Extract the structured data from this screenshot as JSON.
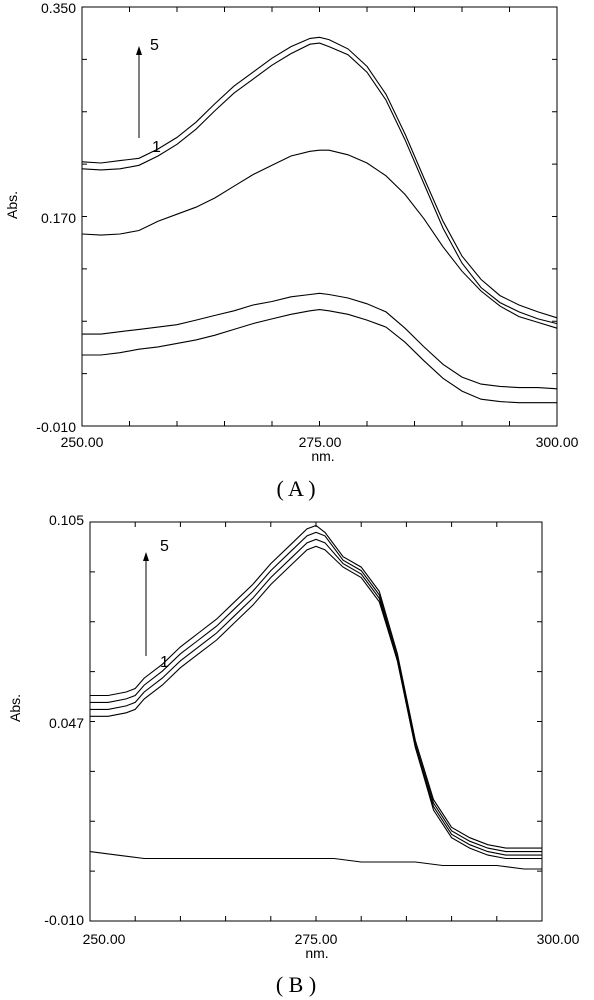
{
  "chart_data": [
    {
      "type": "line",
      "caption": "( A )",
      "xlabel": "nm.",
      "ylabel": "Abs.",
      "xlim": [
        250,
        300
      ],
      "ylim": [
        -0.01,
        0.35
      ],
      "xtick_labels": [
        "250.00",
        "275.00",
        "300.00"
      ],
      "ytick_labels": [
        "0.350",
        "0.170",
        "-0.010"
      ],
      "ytick_values": [
        0.35,
        0.17,
        -0.01
      ],
      "xtick_values": [
        250,
        275,
        300
      ],
      "grid": false,
      "annotation": {
        "low_label": "1",
        "high_label": "5",
        "arrow": "up",
        "x_at": 256
      },
      "series": [
        {
          "x": [
            250,
            252,
            254,
            256,
            258,
            260,
            262,
            264,
            266,
            268,
            270,
            272,
            274,
            275,
            276,
            278,
            280,
            282,
            284,
            286,
            288,
            290,
            292,
            294,
            296,
            298,
            300
          ],
          "values": [
            0.051,
            0.051,
            0.053,
            0.056,
            0.058,
            0.061,
            0.064,
            0.068,
            0.073,
            0.078,
            0.082,
            0.086,
            0.089,
            0.09,
            0.089,
            0.086,
            0.081,
            0.075,
            0.062,
            0.046,
            0.031,
            0.02,
            0.013,
            0.011,
            0.01,
            0.01,
            0.01
          ]
        },
        {
          "x": [
            250,
            252,
            254,
            256,
            258,
            260,
            262,
            264,
            266,
            268,
            270,
            272,
            274,
            275,
            276,
            278,
            280,
            282,
            284,
            286,
            288,
            290,
            292,
            294,
            296,
            298,
            300
          ],
          "values": [
            0.069,
            0.069,
            0.071,
            0.073,
            0.075,
            0.077,
            0.081,
            0.085,
            0.089,
            0.094,
            0.097,
            0.101,
            0.103,
            0.104,
            0.103,
            0.1,
            0.095,
            0.088,
            0.074,
            0.058,
            0.043,
            0.032,
            0.026,
            0.024,
            0.023,
            0.023,
            0.022
          ]
        },
        {
          "x": [
            250,
            252,
            254,
            256,
            258,
            260,
            262,
            264,
            266,
            268,
            270,
            272,
            274,
            275,
            276,
            278,
            280,
            282,
            284,
            286,
            288,
            290,
            292,
            294,
            296,
            298,
            300
          ],
          "values": [
            0.155,
            0.154,
            0.155,
            0.158,
            0.166,
            0.172,
            0.178,
            0.186,
            0.196,
            0.206,
            0.214,
            0.222,
            0.226,
            0.227,
            0.227,
            0.223,
            0.216,
            0.205,
            0.189,
            0.168,
            0.144,
            0.123,
            0.106,
            0.093,
            0.084,
            0.079,
            0.074
          ]
        },
        {
          "x": [
            250,
            252,
            254,
            256,
            258,
            260,
            262,
            264,
            266,
            268,
            270,
            272,
            274,
            275,
            276,
            278,
            280,
            282,
            284,
            286,
            288,
            290,
            292,
            294,
            296,
            298,
            300
          ],
          "values": [
            0.211,
            0.21,
            0.211,
            0.214,
            0.222,
            0.232,
            0.245,
            0.261,
            0.276,
            0.288,
            0.3,
            0.31,
            0.318,
            0.319,
            0.316,
            0.309,
            0.294,
            0.27,
            0.236,
            0.198,
            0.16,
            0.13,
            0.109,
            0.096,
            0.088,
            0.082,
            0.078
          ]
        },
        {
          "x": [
            250,
            252,
            254,
            256,
            258,
            260,
            262,
            264,
            266,
            268,
            270,
            272,
            274,
            275,
            276,
            278,
            280,
            282,
            284,
            286,
            288,
            290,
            292,
            294,
            296,
            298,
            300
          ],
          "values": [
            0.217,
            0.216,
            0.218,
            0.22,
            0.228,
            0.238,
            0.251,
            0.267,
            0.282,
            0.294,
            0.306,
            0.316,
            0.323,
            0.324,
            0.322,
            0.314,
            0.299,
            0.275,
            0.241,
            0.203,
            0.166,
            0.136,
            0.116,
            0.102,
            0.094,
            0.088,
            0.083
          ]
        }
      ]
    },
    {
      "type": "line",
      "caption": "( B )",
      "xlabel": "nm.",
      "ylabel": "Abs.",
      "xlim": [
        250,
        300
      ],
      "ylim": [
        -0.01,
        0.105
      ],
      "xtick_labels": [
        "250.00",
        "275.00",
        "300.00"
      ],
      "ytick_labels": [
        "0.105",
        "0.047",
        "-0.010"
      ],
      "ytick_values": [
        0.105,
        0.047,
        -0.01
      ],
      "xtick_values": [
        250,
        275,
        300
      ],
      "grid": false,
      "annotation": {
        "low_label": "1",
        "high_label": "5",
        "arrow": "up",
        "x_at": 256
      },
      "series": [
        {
          "x": [
            250,
            253,
            256,
            259,
            262,
            265,
            268,
            271,
            274,
            277,
            280,
            283,
            286,
            289,
            292,
            295,
            298,
            300
          ],
          "values": [
            0.01,
            0.009,
            0.008,
            0.008,
            0.008,
            0.008,
            0.008,
            0.008,
            0.008,
            0.008,
            0.007,
            0.007,
            0.007,
            0.006,
            0.006,
            0.006,
            0.005,
            0.005
          ]
        },
        {
          "x": [
            250,
            252,
            254,
            255,
            256,
            258,
            260,
            262,
            264,
            266,
            268,
            270,
            272,
            274,
            275,
            276,
            278,
            280,
            282,
            284,
            286,
            288,
            290,
            292,
            294,
            296,
            298,
            300
          ],
          "values": [
            0.049,
            0.049,
            0.05,
            0.051,
            0.054,
            0.058,
            0.063,
            0.067,
            0.071,
            0.076,
            0.081,
            0.087,
            0.092,
            0.097,
            0.098,
            0.097,
            0.092,
            0.089,
            0.082,
            0.065,
            0.04,
            0.022,
            0.014,
            0.011,
            0.009,
            0.008,
            0.008,
            0.008
          ]
        },
        {
          "x": [
            250,
            252,
            254,
            255,
            256,
            258,
            260,
            262,
            264,
            266,
            268,
            270,
            272,
            274,
            275,
            276,
            278,
            280,
            282,
            284,
            286,
            288,
            290,
            292,
            294,
            296,
            298,
            300
          ],
          "values": [
            0.051,
            0.051,
            0.052,
            0.053,
            0.056,
            0.06,
            0.065,
            0.069,
            0.073,
            0.078,
            0.083,
            0.089,
            0.094,
            0.099,
            0.1,
            0.099,
            0.093,
            0.09,
            0.083,
            0.065,
            0.04,
            0.023,
            0.015,
            0.012,
            0.01,
            0.009,
            0.009,
            0.009
          ]
        },
        {
          "x": [
            250,
            252,
            254,
            255,
            256,
            258,
            260,
            262,
            264,
            266,
            268,
            270,
            272,
            274,
            275,
            276,
            278,
            280,
            282,
            284,
            286,
            288,
            290,
            292,
            294,
            296,
            298,
            300
          ],
          "values": [
            0.053,
            0.053,
            0.054,
            0.055,
            0.058,
            0.062,
            0.067,
            0.071,
            0.075,
            0.08,
            0.085,
            0.091,
            0.096,
            0.101,
            0.102,
            0.101,
            0.094,
            0.091,
            0.084,
            0.066,
            0.041,
            0.024,
            0.016,
            0.013,
            0.011,
            0.01,
            0.01,
            0.01
          ]
        },
        {
          "x": [
            250,
            252,
            254,
            255,
            256,
            258,
            260,
            262,
            264,
            266,
            268,
            270,
            272,
            274,
            275,
            276,
            278,
            280,
            282,
            284,
            286,
            288,
            290,
            292,
            294,
            296,
            298,
            300
          ],
          "values": [
            0.055,
            0.055,
            0.056,
            0.057,
            0.06,
            0.064,
            0.069,
            0.073,
            0.077,
            0.082,
            0.087,
            0.093,
            0.098,
            0.103,
            0.104,
            0.102,
            0.095,
            0.092,
            0.085,
            0.067,
            0.042,
            0.025,
            0.017,
            0.014,
            0.012,
            0.011,
            0.011,
            0.011
          ]
        }
      ]
    }
  ]
}
